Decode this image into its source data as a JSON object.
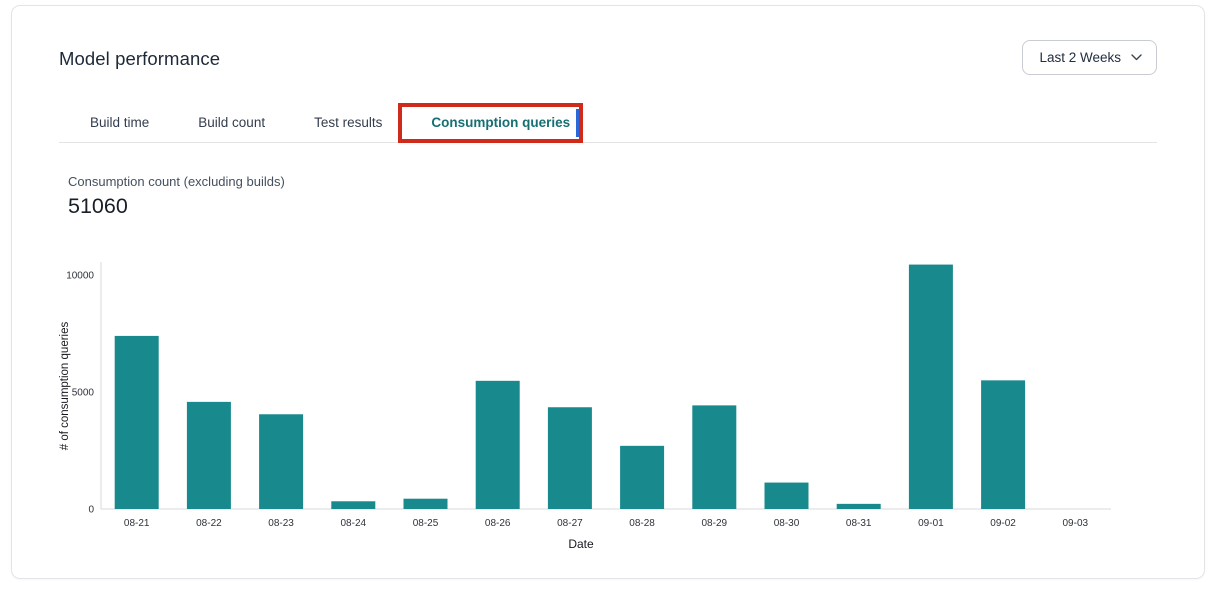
{
  "header": {
    "title": "Model performance"
  },
  "time_range": {
    "value": "Last 2 Weeks",
    "chevron_icon": "chevron-down"
  },
  "tabs": [
    {
      "label": "Build time",
      "active": false
    },
    {
      "label": "Build count",
      "active": false
    },
    {
      "label": "Test results",
      "active": false
    },
    {
      "label": "Consumption queries",
      "active": true,
      "annotated": true
    }
  ],
  "metric": {
    "label": "Consumption count (excluding builds)",
    "value": "51060"
  },
  "chart_data": {
    "type": "bar",
    "title": "",
    "categories": [
      "08-21",
      "08-22",
      "08-23",
      "08-24",
      "08-25",
      "08-26",
      "08-27",
      "08-28",
      "08-29",
      "08-30",
      "08-31",
      "09-01",
      "09-02",
      "09-03"
    ],
    "values": [
      7400,
      4580,
      4050,
      330,
      440,
      5480,
      4350,
      2700,
      4430,
      1130,
      220,
      10450,
      5500,
      0
    ],
    "xlabel": "Date",
    "ylabel": "# of consumption queries",
    "yticks": [
      0,
      5000,
      10000
    ],
    "ylim": [
      0,
      10560
    ],
    "grid": false,
    "legend": null,
    "bar_color": "#18898d"
  },
  "annotation": {
    "type": "highlight-box",
    "target": "Consumption queries tab",
    "border_color": "#d02a1a",
    "focus_line_color": "#2a67d8"
  },
  "colors": {
    "accent_teal": "#18898d",
    "active_tab": "#156f73",
    "card_border": "#e3e4e8",
    "axis_line": "#d9dade",
    "text_dark": "#1d2838",
    "text_muted": "#45505f"
  }
}
